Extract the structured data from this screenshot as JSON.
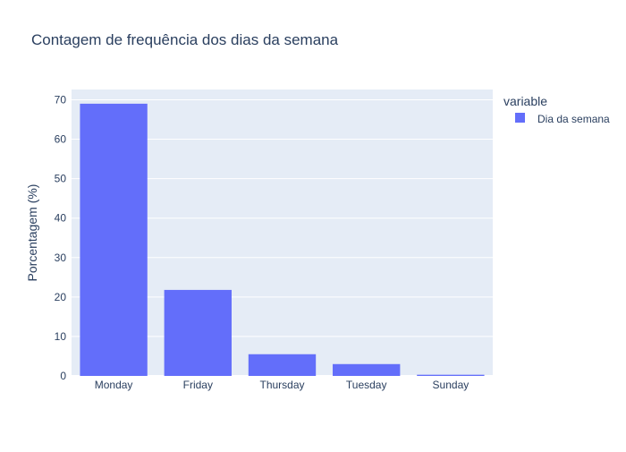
{
  "chart_data": {
    "type": "bar",
    "title": "Contagem de frequência dos dias da semana",
    "xlabel": "",
    "ylabel": "Porcentagem (%)",
    "categories": [
      "Monday",
      "Friday",
      "Thursday",
      "Tuesday",
      "Sunday"
    ],
    "series": [
      {
        "name": "Dia da semana",
        "values": [
          69.0,
          21.8,
          5.5,
          3.0,
          0.3
        ],
        "color": "#636efa"
      }
    ],
    "ylim": [
      0,
      72.6
    ],
    "yticks": [
      0,
      10,
      20,
      30,
      40,
      50,
      60,
      70
    ],
    "grid": true,
    "legend": {
      "title": "variable",
      "placement": "right"
    },
    "plot_background": "#e5ecf6",
    "gridline_color": "#ffffff"
  }
}
